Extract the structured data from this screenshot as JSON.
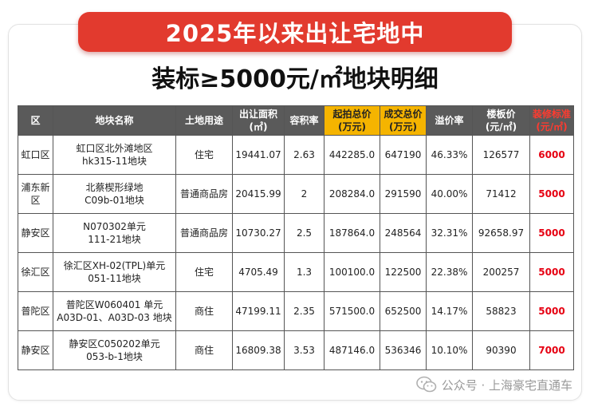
{
  "header": {
    "banner_title": "2025年以来出让宅地中",
    "subtitle": "装标≥5000元/㎡地块明细"
  },
  "table": {
    "headers": [
      {
        "line1": "区",
        "line2": ""
      },
      {
        "line1": "地块名称",
        "line2": ""
      },
      {
        "line1": "土地用途",
        "line2": ""
      },
      {
        "line1": "出让面积",
        "line2": "(㎡)"
      },
      {
        "line1": "容积率",
        "line2": ""
      },
      {
        "line1": "起拍总价",
        "line2": "(万元)"
      },
      {
        "line1": "成交总价",
        "line2": "(万元)"
      },
      {
        "line1": "溢价率",
        "line2": ""
      },
      {
        "line1": "楼板价",
        "line2": "(元/㎡)"
      },
      {
        "line1": "装修标准",
        "line2": "(元/㎡)"
      }
    ],
    "rows": [
      {
        "district": "虹口区",
        "parcel_line1": "虹口区北外滩地区",
        "parcel_line2": "hk315-11地块",
        "use": "住宅",
        "area": "19441.07",
        "far": "2.63",
        "start_price": "442285.0",
        "deal_price": "647190",
        "premium": "46.33%",
        "floor_price": "126577",
        "decoration": "6000"
      },
      {
        "district": "浦东新区",
        "parcel_line1": "北蔡楔形绿地",
        "parcel_line2": "C09b-01地块",
        "use": "普通商品房",
        "area": "20415.99",
        "far": "2",
        "start_price": "208284.0",
        "deal_price": "291590",
        "premium": "40.00%",
        "floor_price": "71412",
        "decoration": "5000"
      },
      {
        "district": "静安区",
        "parcel_line1": "N070302单元",
        "parcel_line2": "111-21地块",
        "use": "普通商品房",
        "area": "10730.27",
        "far": "2.5",
        "start_price": "187864.0",
        "deal_price": "248564",
        "premium": "32.31%",
        "floor_price": "92658.97",
        "decoration": "5000"
      },
      {
        "district": "徐汇区",
        "parcel_line1": "徐汇区XH-02(TPL)单元",
        "parcel_line2": "051-11地块",
        "use": "住宅",
        "area": "4705.49",
        "far": "1.3",
        "start_price": "100100.0",
        "deal_price": "122500",
        "premium": "22.38%",
        "floor_price": "200257",
        "decoration": "5000"
      },
      {
        "district": "普陀区",
        "parcel_line1": "普陀区W060401 单元",
        "parcel_line2": "A03D-01、A03D-03 地块",
        "use": "商住",
        "area": "47199.11",
        "far": "2.35",
        "start_price": "571500.0",
        "deal_price": "652500",
        "premium": "14.17%",
        "floor_price": "58823",
        "decoration": "5000"
      },
      {
        "district": "静安区",
        "parcel_line1": "静安区C050202单元",
        "parcel_line2": "053-b-1地块",
        "use": "商住",
        "area": "16809.38",
        "far": "3.53",
        "start_price": "487146.0",
        "deal_price": "536346",
        "premium": "10.10%",
        "floor_price": "90390",
        "decoration": "7000"
      }
    ]
  },
  "footer": {
    "source_text": "公众号 · 上海豪宅直通车",
    "icon": "wechat-icon"
  },
  "colors": {
    "banner_red": "#e23a2e",
    "header_gray": "#5a5a5a",
    "header_gold": "#f5b400",
    "accent_red": "#e60012"
  }
}
